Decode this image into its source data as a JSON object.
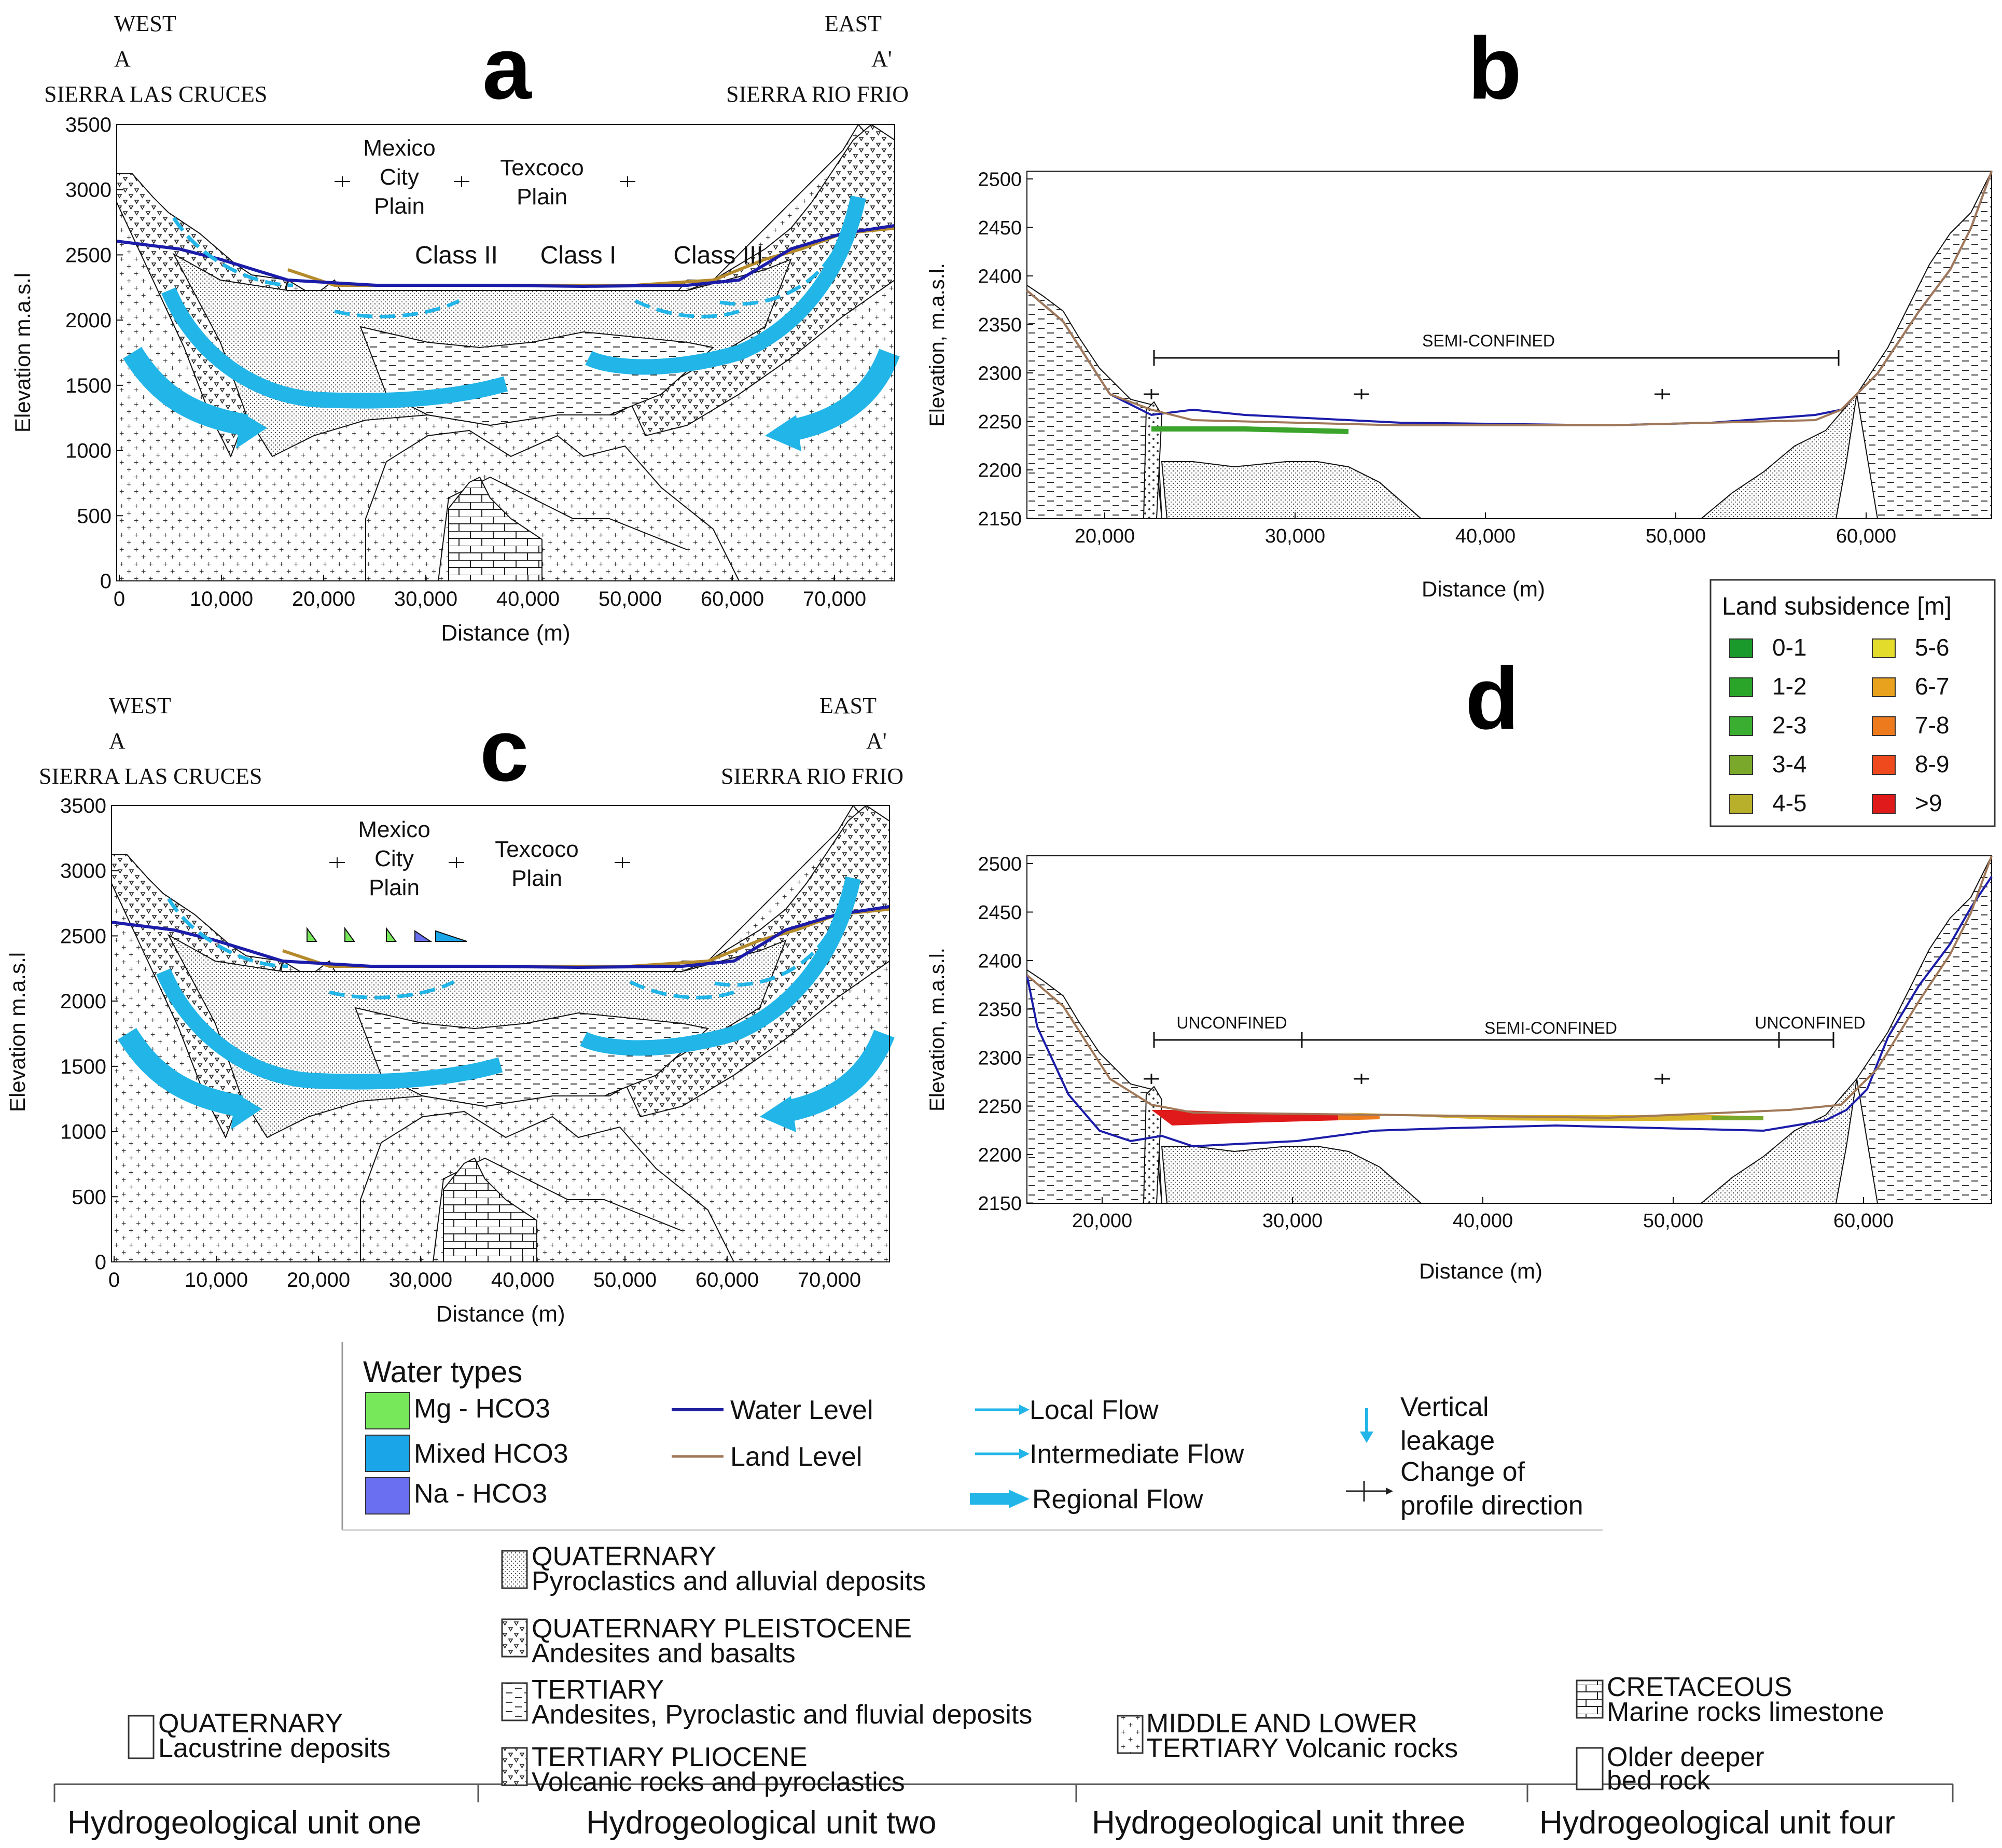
{
  "panels": {
    "a": {
      "letter": "a",
      "west": "WEST",
      "west_mark": "A",
      "west_range": "SIERRA LAS CRUCES",
      "east": "EAST",
      "east_mark": "A'",
      "east_range": "SIERRA RIO FRIO",
      "ylabel": "Elevation m.a.s.l",
      "xlabel": "Distance (m)",
      "yticks": [
        "3500",
        "3000",
        "2500",
        "2000",
        "1500",
        "1000",
        "500",
        "0"
      ],
      "xticks": [
        "0",
        "10,000",
        "20,000",
        "30,000",
        "40,000",
        "50,000",
        "60,000",
        "70,000"
      ],
      "plain1": [
        "Mexico",
        "City",
        "Plain"
      ],
      "plain2": [
        "Texcoco",
        "Plain"
      ],
      "classes": [
        "Class II",
        "Class I",
        "Class III"
      ]
    },
    "b": {
      "letter": "b",
      "ylabel": "Elevation, m.a.s.l.",
      "xlabel": "Distance (m)",
      "yticks": [
        "2500",
        "2450",
        "2400",
        "2350",
        "2300",
        "2250",
        "2200",
        "2150"
      ],
      "xticks": [
        "20,000",
        "30,000",
        "40,000",
        "50,000",
        "60,000"
      ],
      "zone": "SEMI-CONFINED"
    },
    "c": {
      "letter": "c",
      "west": "WEST",
      "west_mark": "A",
      "west_range": "SIERRA LAS CRUCES",
      "east": "EAST",
      "east_mark": "A'",
      "east_range": "SIERRA RIO FRIO",
      "ylabel": "Elevation m.a.s.l",
      "xlabel": "Distance (m)",
      "yticks": [
        "3500",
        "3000",
        "2500",
        "2000",
        "1500",
        "1000",
        "500",
        "0"
      ],
      "xticks": [
        "0",
        "10,000",
        "20,000",
        "30,000",
        "40,000",
        "50,000",
        "60,000",
        "70,000"
      ],
      "plain1": [
        "Mexico",
        "City",
        "Plain"
      ],
      "plain2": [
        "Texcoco",
        "Plain"
      ]
    },
    "d": {
      "letter": "d",
      "ylabel": "Elevation, m.a.s.l.",
      "xlabel": "Distance (m)",
      "yticks": [
        "2500",
        "2450",
        "2400",
        "2350",
        "2300",
        "2250",
        "2200",
        "2150"
      ],
      "xticks": [
        "20,000",
        "30,000",
        "40,000",
        "50,000",
        "60,000"
      ],
      "zones": [
        "UNCONFINED",
        "SEMI-CONFINED",
        "UNCONFINED"
      ]
    }
  },
  "subsidence_legend": {
    "title": "Land subsidence [m]",
    "items": [
      {
        "label": "0-1",
        "color": "#1a9a2a"
      },
      {
        "label": "1-2",
        "color": "#2aa52a"
      },
      {
        "label": "2-3",
        "color": "#3aae30"
      },
      {
        "label": "3-4",
        "color": "#7aa82a"
      },
      {
        "label": "4-5",
        "color": "#b8b02a"
      },
      {
        "label": "5-6",
        "color": "#e4dc2a"
      },
      {
        "label": "6-7",
        "color": "#e8a21e"
      },
      {
        "label": "7-8",
        "color": "#ee7a1e"
      },
      {
        "label": "8-9",
        "color": "#ee4a1e"
      },
      {
        "label": ">9",
        "color": "#e01a1a"
      }
    ]
  },
  "water_legend": {
    "title": "Water types",
    "types": [
      {
        "label": "Mg - HCO3",
        "color": "#77e85a"
      },
      {
        "label": "Mixed HCO3",
        "color": "#1aa5e8"
      },
      {
        "label": "Na - HCO3",
        "color": "#6a6ef0"
      }
    ],
    "lines": [
      {
        "label": "Water Level",
        "color": "#2020a0"
      },
      {
        "label": "Land Level",
        "color": "#a07858"
      }
    ],
    "flows": [
      "Local Flow",
      "Intermediate Flow",
      "Regional Flow"
    ],
    "vertical": [
      "Vertical",
      "leakage"
    ],
    "change": [
      "Change of",
      "profile direction"
    ]
  },
  "units": {
    "one": {
      "title": "Hydrogeological unit one",
      "items": [
        [
          "QUATERNARY",
          "Lacustrine deposits"
        ]
      ]
    },
    "two": {
      "title": "Hydrogeological unit two",
      "items": [
        [
          "QUATERNARY",
          "Pyroclastics and alluvial deposits"
        ],
        [
          "QUATERNARY PLEISTOCENE",
          "Andesites and basalts"
        ],
        [
          "TERTIARY",
          "Andesites, Pyroclastic and fluvial deposits"
        ],
        [
          "TERTIARY PLIOCENE",
          "Volcanic rocks and pyroclastics"
        ]
      ]
    },
    "three": {
      "title": "Hydrogeological unit three",
      "items": [
        [
          "MIDDLE AND LOWER",
          "TERTIARY Volcanic rocks"
        ]
      ]
    },
    "four": {
      "title": "Hydrogeological unit four",
      "items": [
        [
          "CRETACEOUS",
          "Marine rocks limestone"
        ],
        [
          "Older deeper",
          "bed rock"
        ]
      ]
    }
  }
}
